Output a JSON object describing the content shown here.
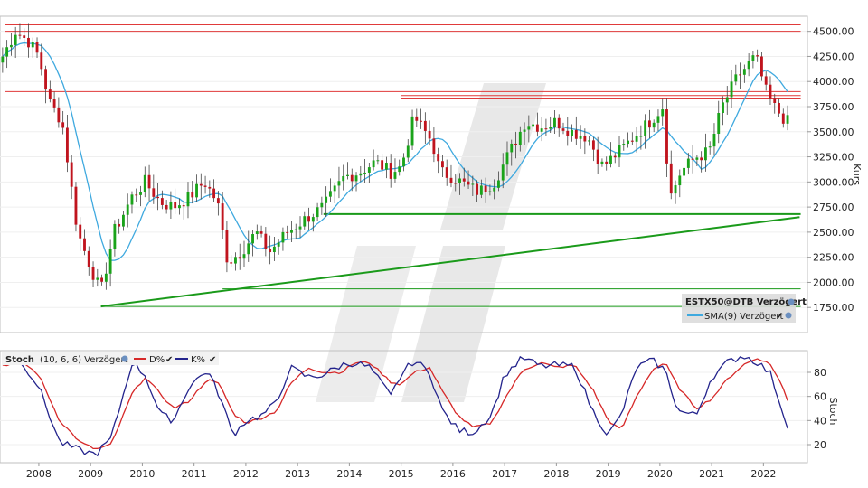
{
  "colors": {
    "up": "#1aa31a",
    "down": "#c0141e",
    "sma": "#3fa9df",
    "resistance": "#e03a3a",
    "support": "#1a9a1a",
    "stoch_d": "#d62828",
    "stoch_k": "#23238c",
    "watermark": "#e6e6e6"
  },
  "chart_data": [
    {
      "type": "candlestick",
      "title": "ESTX50@DTB Verzögert",
      "ylabel": "Kurs",
      "ylim": [
        1500,
        4650
      ],
      "y_ticks": [
        "4500.00",
        "4250.00",
        "4000.00",
        "3750.00",
        "3500.00",
        "3250.00",
        "3000.00",
        "2750.00",
        "2500.00",
        "2250.00",
        "2000.00",
        "1750.00"
      ],
      "x_ticks": [
        "2008",
        "2009",
        "2010",
        "2011",
        "2012",
        "2013",
        "2014",
        "2015",
        "2016",
        "2017",
        "2018",
        "2019",
        "2020",
        "2021",
        "2022"
      ],
      "x_range": [
        2007.25,
        2022.85
      ],
      "legend": {
        "instrument": "ESTX50@DTB Verzögert",
        "sma_label": "SMA(9) Verzögert"
      },
      "anchors": [
        [
          2007.3,
          4250
        ],
        [
          2007.55,
          4500
        ],
        [
          2007.8,
          4400
        ],
        [
          2008.0,
          4250
        ],
        [
          2008.2,
          3800
        ],
        [
          2008.45,
          3600
        ],
        [
          2008.75,
          2500
        ],
        [
          2009.0,
          2150
        ],
        [
          2009.2,
          1900
        ],
        [
          2009.45,
          2500
        ],
        [
          2009.8,
          2850
        ],
        [
          2010.05,
          3000
        ],
        [
          2010.35,
          2800
        ],
        [
          2010.6,
          2750
        ],
        [
          2010.9,
          2850
        ],
        [
          2011.2,
          3000
        ],
        [
          2011.45,
          2800
        ],
        [
          2011.65,
          2200
        ],
        [
          2011.9,
          2300
        ],
        [
          2012.2,
          2500
        ],
        [
          2012.45,
          2300
        ],
        [
          2012.8,
          2500
        ],
        [
          2013.2,
          2650
        ],
        [
          2013.5,
          2750
        ],
        [
          2013.9,
          3050
        ],
        [
          2014.2,
          3100
        ],
        [
          2014.5,
          3200
        ],
        [
          2014.8,
          3100
        ],
        [
          2015.0,
          3150
        ],
        [
          2015.25,
          3650
        ],
        [
          2015.6,
          3400
        ],
        [
          2015.75,
          3100
        ],
        [
          2016.0,
          3050
        ],
        [
          2016.3,
          2950
        ],
        [
          2016.5,
          2900
        ],
        [
          2016.8,
          3000
        ],
        [
          2017.1,
          3300
        ],
        [
          2017.4,
          3600
        ],
        [
          2017.7,
          3550
        ],
        [
          2018.0,
          3600
        ],
        [
          2018.3,
          3500
        ],
        [
          2018.6,
          3450
        ],
        [
          2018.9,
          3150
        ],
        [
          2019.2,
          3300
        ],
        [
          2019.5,
          3450
        ],
        [
          2019.8,
          3600
        ],
        [
          2020.05,
          3750
        ],
        [
          2020.2,
          2850
        ],
        [
          2020.4,
          3100
        ],
        [
          2020.7,
          3250
        ],
        [
          2020.95,
          3300
        ],
        [
          2021.2,
          3750
        ],
        [
          2021.5,
          4050
        ],
        [
          2021.85,
          4250
        ],
        [
          2022.05,
          3900
        ],
        [
          2022.2,
          3750
        ],
        [
          2022.45,
          3600
        ]
      ],
      "resistance_levels": [
        4565,
        4500,
        3900,
        3860,
        3835
      ],
      "support_levels": [
        2680,
        1935,
        1760
      ],
      "trendline": {
        "from": [
          2009.2,
          1760
        ],
        "to": [
          2022.7,
          2650
        ]
      }
    },
    {
      "type": "line",
      "title": "Stoch",
      "params": "(10, 6, 6) Verzögert",
      "ylabel": "Stoch",
      "ylim": [
        5,
        98
      ],
      "y_ticks": [
        "80",
        "60",
        "40",
        "20"
      ],
      "legend": {
        "d_label": "D%",
        "k_label": "K%"
      },
      "k_anchors": [
        [
          2007.3,
          92
        ],
        [
          2007.7,
          87
        ],
        [
          2008.0,
          68
        ],
        [
          2008.4,
          22
        ],
        [
          2008.8,
          15
        ],
        [
          2009.1,
          12
        ],
        [
          2009.4,
          25
        ],
        [
          2009.8,
          88
        ],
        [
          2010.05,
          78
        ],
        [
          2010.35,
          45
        ],
        [
          2010.6,
          40
        ],
        [
          2010.9,
          68
        ],
        [
          2011.25,
          82
        ],
        [
          2011.5,
          60
        ],
        [
          2011.75,
          28
        ],
        [
          2012.0,
          40
        ],
        [
          2012.3,
          44
        ],
        [
          2012.6,
          55
        ],
        [
          2012.85,
          84
        ],
        [
          2013.2,
          76
        ],
        [
          2013.5,
          78
        ],
        [
          2013.85,
          86
        ],
        [
          2014.1,
          88
        ],
        [
          2014.4,
          84
        ],
        [
          2014.8,
          60
        ],
        [
          2015.0,
          78
        ],
        [
          2015.25,
          90
        ],
        [
          2015.55,
          80
        ],
        [
          2015.8,
          48
        ],
        [
          2016.1,
          32
        ],
        [
          2016.4,
          30
        ],
        [
          2016.75,
          45
        ],
        [
          2017.0,
          78
        ],
        [
          2017.35,
          92
        ],
        [
          2017.7,
          85
        ],
        [
          2018.0,
          86
        ],
        [
          2018.35,
          85
        ],
        [
          2018.7,
          48
        ],
        [
          2019.0,
          28
        ],
        [
          2019.25,
          44
        ],
        [
          2019.55,
          84
        ],
        [
          2019.85,
          90
        ],
        [
          2020.1,
          82
        ],
        [
          2020.35,
          48
        ],
        [
          2020.7,
          44
        ],
        [
          2021.0,
          76
        ],
        [
          2021.3,
          88
        ],
        [
          2021.6,
          94
        ],
        [
          2021.9,
          88
        ],
        [
          2022.15,
          78
        ],
        [
          2022.35,
          50
        ],
        [
          2022.47,
          36
        ]
      ],
      "d_anchors": [
        [
          2007.3,
          86
        ],
        [
          2007.7,
          88
        ],
        [
          2008.0,
          78
        ],
        [
          2008.4,
          40
        ],
        [
          2008.8,
          22
        ],
        [
          2009.1,
          16
        ],
        [
          2009.4,
          20
        ],
        [
          2009.8,
          62
        ],
        [
          2010.05,
          76
        ],
        [
          2010.35,
          62
        ],
        [
          2010.6,
          50
        ],
        [
          2010.9,
          56
        ],
        [
          2011.25,
          74
        ],
        [
          2011.5,
          70
        ],
        [
          2011.75,
          46
        ],
        [
          2012.0,
          38
        ],
        [
          2012.3,
          42
        ],
        [
          2012.6,
          48
        ],
        [
          2012.85,
          70
        ],
        [
          2013.2,
          84
        ],
        [
          2013.5,
          80
        ],
        [
          2013.85,
          80
        ],
        [
          2014.1,
          88
        ],
        [
          2014.4,
          88
        ],
        [
          2014.8,
          72
        ],
        [
          2015.0,
          70
        ],
        [
          2015.25,
          80
        ],
        [
          2015.55,
          84
        ],
        [
          2015.8,
          64
        ],
        [
          2016.1,
          44
        ],
        [
          2016.4,
          34
        ],
        [
          2016.75,
          38
        ],
        [
          2017.0,
          58
        ],
        [
          2017.35,
          82
        ],
        [
          2017.7,
          88
        ],
        [
          2018.0,
          84
        ],
        [
          2018.35,
          86
        ],
        [
          2018.7,
          66
        ],
        [
          2019.0,
          40
        ],
        [
          2019.25,
          32
        ],
        [
          2019.55,
          60
        ],
        [
          2019.85,
          82
        ],
        [
          2020.1,
          88
        ],
        [
          2020.35,
          68
        ],
        [
          2020.7,
          50
        ],
        [
          2021.0,
          58
        ],
        [
          2021.3,
          74
        ],
        [
          2021.6,
          86
        ],
        [
          2021.9,
          92
        ],
        [
          2022.15,
          86
        ],
        [
          2022.35,
          70
        ],
        [
          2022.47,
          56
        ]
      ]
    }
  ]
}
